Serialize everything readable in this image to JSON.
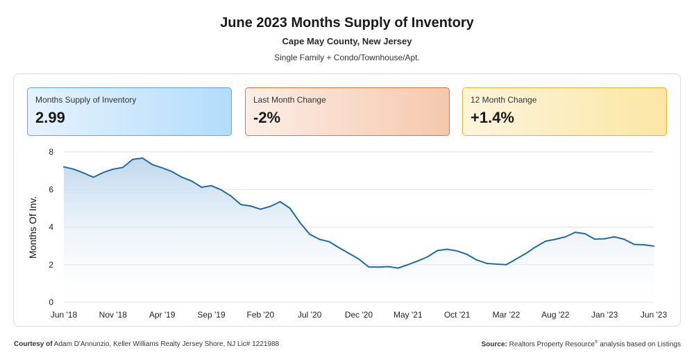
{
  "header": {
    "title": "June 2023 Months Supply of Inventory",
    "subtitle": "Cape May County, New Jersey",
    "property_types": "Single Family + Condo/Townhouse/Apt."
  },
  "kpis": [
    {
      "label": "Months Supply of Inventory",
      "value": "2.99"
    },
    {
      "label": "Last Month Change",
      "value": "-2%"
    },
    {
      "label": "12 Month Change",
      "value": "+1.4%"
    }
  ],
  "colors": {
    "line": "#1f6aa5",
    "area_top": "#b9d3ea",
    "grid": "#e2e2e2"
  },
  "chart_data": {
    "type": "area",
    "ylabel": "Months Of Inv.",
    "xlabel": "",
    "ylim": [
      0,
      8
    ],
    "yticks": [
      0,
      2,
      4,
      6,
      8
    ],
    "grid": true,
    "x_tick_labels": [
      "Jun '18",
      "Nov '18",
      "Apr '19",
      "Sep '19",
      "Feb '20",
      "Jul '20",
      "Dec '20",
      "May '21",
      "Oct '21",
      "Mar '22",
      "Aug '22",
      "Jan '23",
      "Jun '23"
    ],
    "x_tick_index": [
      0,
      5,
      10,
      15,
      20,
      25,
      30,
      35,
      40,
      45,
      50,
      55,
      60
    ],
    "x": [
      "2018-06",
      "2018-07",
      "2018-08",
      "2018-09",
      "2018-10",
      "2018-11",
      "2018-12",
      "2019-01",
      "2019-02",
      "2019-03",
      "2019-04",
      "2019-05",
      "2019-06",
      "2019-07",
      "2019-08",
      "2019-09",
      "2019-10",
      "2019-11",
      "2019-12",
      "2020-01",
      "2020-02",
      "2020-03",
      "2020-04",
      "2020-05",
      "2020-06",
      "2020-07",
      "2020-08",
      "2020-09",
      "2020-10",
      "2020-11",
      "2020-12",
      "2021-01",
      "2021-02",
      "2021-03",
      "2021-04",
      "2021-05",
      "2021-06",
      "2021-07",
      "2021-08",
      "2021-09",
      "2021-10",
      "2021-11",
      "2021-12",
      "2022-01",
      "2022-02",
      "2022-03",
      "2022-04",
      "2022-05",
      "2022-06",
      "2022-07",
      "2022-08",
      "2022-09",
      "2022-10",
      "2022-11",
      "2022-12",
      "2023-01",
      "2023-02",
      "2023-03",
      "2023-04",
      "2023-05",
      "2023-06"
    ],
    "series": [
      {
        "values": [
          7.2,
          7.08,
          6.88,
          6.65,
          6.9,
          7.08,
          7.17,
          7.6,
          7.67,
          7.32,
          7.15,
          6.95,
          6.65,
          6.45,
          6.12,
          6.2,
          5.98,
          5.65,
          5.2,
          5.12,
          4.95,
          5.1,
          5.35,
          5.0,
          4.25,
          3.62,
          3.35,
          3.22,
          2.9,
          2.6,
          2.3,
          1.88,
          1.87,
          1.9,
          1.82,
          2.0,
          2.2,
          2.42,
          2.75,
          2.82,
          2.73,
          2.55,
          2.25,
          2.07,
          2.03,
          2.0,
          2.3,
          2.6,
          2.95,
          3.25,
          3.35,
          3.48,
          3.72,
          3.65,
          3.36,
          3.38,
          3.48,
          3.35,
          3.08,
          3.06,
          2.99
        ]
      }
    ]
  },
  "footer": {
    "courtesy_label": "Courtesy of",
    "courtesy_text": "Adam D'Annunzio, Keller Williams Realty Jersey Shore, NJ Lic# 1221988",
    "source_label": "Source:",
    "source_text_1": "Realtors Property Resource",
    "source_reg": "®",
    "source_text_2": " analysis based on Listings"
  }
}
